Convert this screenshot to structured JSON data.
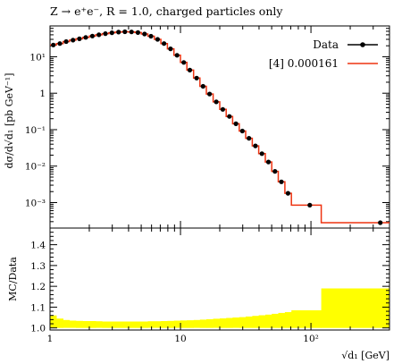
{
  "chart_data": [
    {
      "type": "line",
      "title": "Z → e⁺e⁻, R = 1.0, charged particles only",
      "xscale": "log",
      "yscale": "log",
      "xlim": [
        1,
        400
      ],
      "ylim": [
        0.0002,
        70
      ],
      "xlabel": "√d₁ [GeV]",
      "ylabel": "dσ/d√d₁ [pb GeV⁻¹]",
      "xticklabels": [
        "1",
        "10",
        "10²"
      ],
      "yticklabels": [
        "10⁻³",
        "10⁻²",
        "10⁻¹",
        "1",
        "10¹"
      ],
      "legend_position": "top-right",
      "series": [
        {
          "name": "Data",
          "style": "markers",
          "color": "#000000",
          "x": [
            1.06,
            1.19,
            1.33,
            1.5,
            1.68,
            1.88,
            2.11,
            2.37,
            2.66,
            2.98,
            3.35,
            3.75,
            4.21,
            4.72,
            5.3,
            5.94,
            6.67,
            7.48,
            8.39,
            9.41,
            10.6,
            11.8,
            13.3,
            14.9,
            16.7,
            18.8,
            21.1,
            23.7,
            26.6,
            29.8,
            33.5,
            37.5,
            42.1,
            47.2,
            53.0,
            59.4,
            66.7,
            98.0,
            340.0
          ],
          "y": [
            21,
            23,
            26,
            28.5,
            31,
            34,
            37,
            40,
            43,
            45.5,
            47.5,
            48.5,
            48,
            46,
            42,
            36.5,
            30,
            23,
            16.5,
            11,
            7.0,
            4.3,
            2.6,
            1.55,
            0.95,
            0.58,
            0.36,
            0.23,
            0.145,
            0.092,
            0.058,
            0.036,
            0.022,
            0.013,
            0.0072,
            0.0037,
            0.0018,
            0.00085,
            0.00028
          ]
        },
        {
          "name": "[4] 0.000161",
          "style": "histogram",
          "color": "#ee3311",
          "edges": [
            1.0,
            1.12,
            1.26,
            1.41,
            1.58,
            1.78,
            2.0,
            2.24,
            2.51,
            2.82,
            3.16,
            3.55,
            3.98,
            4.47,
            5.01,
            5.62,
            6.31,
            7.08,
            7.94,
            8.91,
            10.0,
            11.2,
            12.6,
            14.1,
            15.8,
            17.8,
            20.0,
            22.4,
            25.1,
            28.2,
            31.6,
            35.5,
            39.8,
            44.7,
            50.1,
            56.2,
            63.1,
            70.8,
            120.0,
            400.0
          ],
          "values": [
            21,
            23,
            26,
            28.5,
            31,
            34,
            37,
            40,
            43,
            45.5,
            47.5,
            48.5,
            48,
            46,
            42,
            36.5,
            30,
            23,
            16.5,
            11,
            7.0,
            4.3,
            2.6,
            1.55,
            0.95,
            0.58,
            0.36,
            0.23,
            0.145,
            0.092,
            0.058,
            0.036,
            0.022,
            0.013,
            0.0072,
            0.0037,
            0.0018,
            0.00085,
            0.00028
          ]
        }
      ]
    },
    {
      "type": "area",
      "xscale": "log",
      "xlim": [
        1,
        400
      ],
      "ylim": [
        0.99,
        1.48
      ],
      "xlabel": "√d₁ [GeV]",
      "ylabel": "MC/Data",
      "xticklabels": [
        "1",
        "10",
        "10²"
      ],
      "yticklabels": [
        "1.0",
        "1.1",
        "1.2",
        "1.3",
        "1.4"
      ],
      "series": [
        {
          "style": "band",
          "color": "#ffff00",
          "edges": [
            1.0,
            1.12,
            1.26,
            1.41,
            1.58,
            1.78,
            2.0,
            2.24,
            2.51,
            2.82,
            3.16,
            3.55,
            3.98,
            4.47,
            5.01,
            5.62,
            6.31,
            7.08,
            7.94,
            8.91,
            10.0,
            11.2,
            12.6,
            14.1,
            15.8,
            17.8,
            20.0,
            22.4,
            25.1,
            28.2,
            31.6,
            35.5,
            39.8,
            44.7,
            50.1,
            56.2,
            63.1,
            70.8,
            120.0,
            400.0
          ],
          "upper": [
            1.06,
            1.045,
            1.038,
            1.035,
            1.034,
            1.033,
            1.033,
            1.032,
            1.031,
            1.031,
            1.031,
            1.031,
            1.031,
            1.031,
            1.031,
            1.032,
            1.032,
            1.033,
            1.034,
            1.035,
            1.036,
            1.037,
            1.038,
            1.04,
            1.042,
            1.044,
            1.046,
            1.048,
            1.05,
            1.052,
            1.055,
            1.058,
            1.061,
            1.064,
            1.068,
            1.072,
            1.076,
            1.085,
            1.19
          ],
          "lower": [
            1.0,
            1.0,
            1.0,
            1.0,
            1.0,
            1.0,
            1.0,
            1.0,
            1.0,
            1.0,
            1.0,
            1.0,
            1.0,
            1.0,
            1.0,
            1.0,
            1.0,
            1.0,
            1.0,
            1.0,
            1.0,
            1.0,
            1.0,
            1.0,
            1.0,
            1.0,
            1.0,
            1.0,
            1.0,
            1.0,
            1.0,
            1.0,
            1.0,
            1.0,
            1.0,
            1.0,
            1.0,
            1.0,
            1.0
          ]
        }
      ]
    }
  ]
}
